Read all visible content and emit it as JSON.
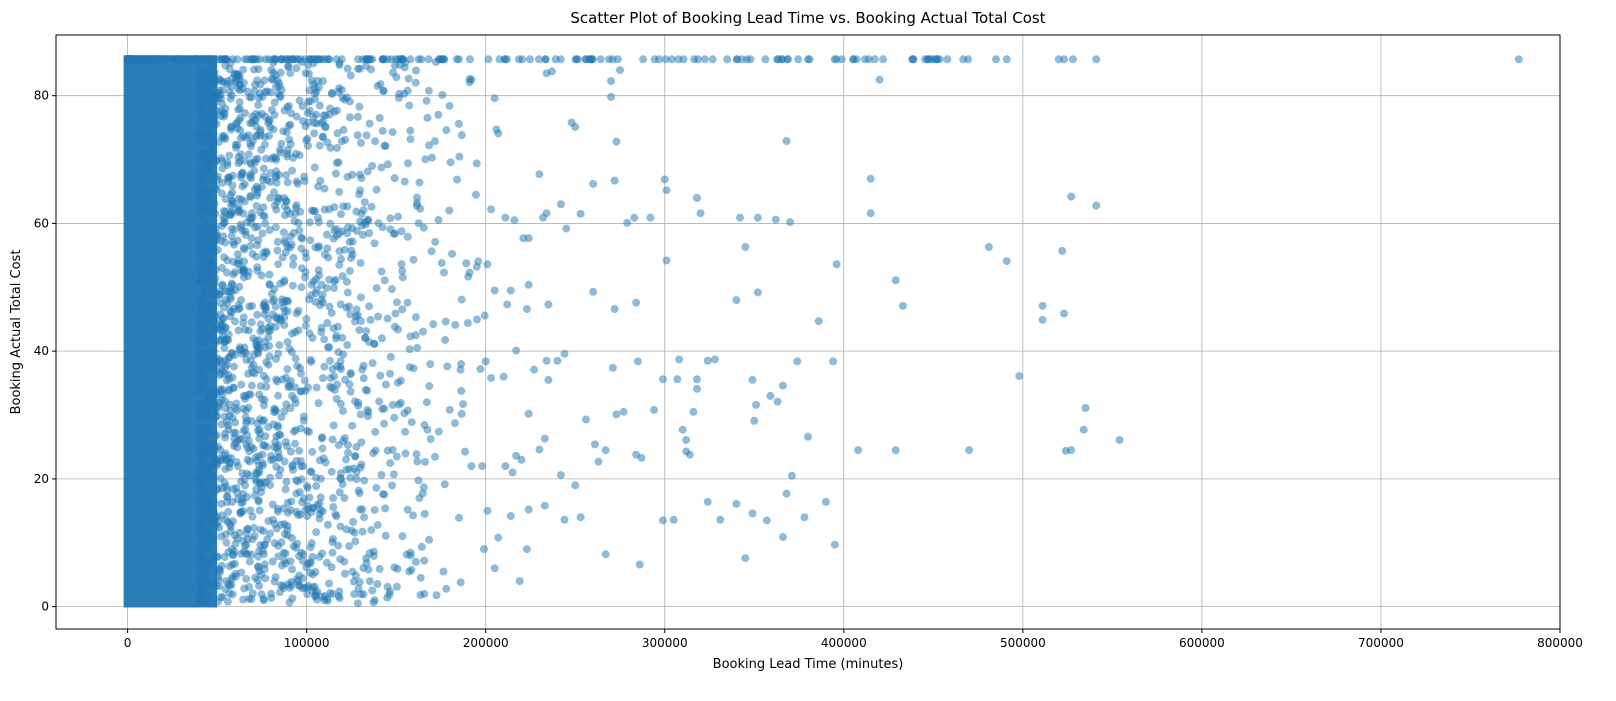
{
  "chart_data": {
    "type": "scatter",
    "title": "Scatter Plot of Booking Lead Time vs. Booking Actual Total Cost",
    "xlabel": "Booking Lead Time (minutes)",
    "ylabel": "Booking Actual Total Cost",
    "xlim": [
      -40000,
      800000
    ],
    "ylim": [
      -3.5,
      89.5
    ],
    "x_ticks": [
      0,
      100000,
      200000,
      300000,
      400000,
      500000,
      600000,
      700000,
      800000
    ],
    "x_tick_labels": [
      "0",
      "100000",
      "200000",
      "300000",
      "400000",
      "500000",
      "600000",
      "700000",
      "800000"
    ],
    "y_ticks": [
      0,
      20,
      40,
      60,
      80
    ],
    "y_tick_labels": [
      "0",
      "20",
      "40",
      "60",
      "80"
    ],
    "grid": true,
    "marker_color": "#1f77b4",
    "marker_alpha": 0.5,
    "dense_band": {
      "x_range": [
        0,
        100000
      ],
      "y_range": [
        0.5,
        85.7
      ],
      "note_values": "dense cluster of points"
    },
    "cap_value": 85.7,
    "sample_points": [
      [
        420000,
        82.5
      ],
      [
        318000,
        64
      ],
      [
        415000,
        67
      ],
      [
        527000,
        64.2
      ],
      [
        541000,
        62.8
      ],
      [
        415000,
        61.6
      ],
      [
        481000,
        56.3
      ],
      [
        522000,
        55.7
      ],
      [
        491000,
        54.1
      ],
      [
        396000,
        53.6
      ],
      [
        429000,
        51.1
      ],
      [
        433000,
        47.1
      ],
      [
        511000,
        47.1
      ],
      [
        511000,
        44.9
      ],
      [
        523000,
        45.9
      ],
      [
        386000,
        44.7
      ],
      [
        368000,
        72.9
      ],
      [
        370000,
        60.2
      ],
      [
        342000,
        60.9
      ],
      [
        352000,
        60.9
      ],
      [
        362000,
        60.6
      ],
      [
        340000,
        48
      ],
      [
        352000,
        49.2
      ],
      [
        345000,
        56.3
      ],
      [
        374000,
        38.4
      ],
      [
        394000,
        38.4
      ],
      [
        366000,
        34.6
      ],
      [
        498000,
        36.1
      ],
      [
        380000,
        26.6
      ],
      [
        408000,
        24.5
      ],
      [
        429000,
        24.5
      ],
      [
        470000,
        24.5
      ],
      [
        524000,
        24.4
      ],
      [
        527000,
        24.5
      ],
      [
        534000,
        27.7
      ],
      [
        535000,
        31.1
      ],
      [
        554000,
        26.1
      ],
      [
        371000,
        20.5
      ],
      [
        368000,
        17.7
      ],
      [
        390000,
        16.4
      ],
      [
        378000,
        14
      ],
      [
        395000,
        9.7
      ],
      [
        345000,
        7.6
      ],
      [
        366000,
        10.9
      ],
      [
        357000,
        13.5
      ],
      [
        349000,
        14.6
      ],
      [
        340000,
        16.1
      ],
      [
        331000,
        13.6
      ],
      [
        324000,
        16.4
      ],
      [
        286000,
        6.6
      ],
      [
        267000,
        8.2
      ],
      [
        305000,
        13.6
      ],
      [
        299000,
        13.5
      ],
      [
        260000,
        66.2
      ],
      [
        272000,
        66.7
      ],
      [
        230000,
        67.7
      ],
      [
        300000,
        66.9
      ],
      [
        301000,
        65.2
      ],
      [
        283000,
        60.9
      ],
      [
        292000,
        60.9
      ],
      [
        279000,
        60.1
      ],
      [
        320000,
        61.6
      ],
      [
        301000,
        54.2
      ],
      [
        284000,
        47.6
      ],
      [
        272000,
        46.6
      ],
      [
        260000,
        49.3
      ],
      [
        308000,
        38.7
      ],
      [
        328000,
        38.7
      ],
      [
        324000,
        38.5
      ],
      [
        299000,
        35.6
      ],
      [
        307000,
        35.6
      ],
      [
        318000,
        35.6
      ],
      [
        318000,
        34.1
      ],
      [
        271000,
        37.4
      ],
      [
        285000,
        38.4
      ],
      [
        349000,
        35.5
      ],
      [
        351000,
        31.6
      ],
      [
        359000,
        33
      ],
      [
        363000,
        32.1
      ],
      [
        350000,
        29.1
      ],
      [
        316000,
        30.5
      ],
      [
        294000,
        30.8
      ],
      [
        310000,
        27.7
      ],
      [
        312000,
        24.3
      ],
      [
        314000,
        23.8
      ],
      [
        312000,
        26.1
      ],
      [
        284000,
        23.8
      ],
      [
        287000,
        23.3
      ],
      [
        267000,
        24.5
      ],
      [
        261000,
        25.4
      ],
      [
        273000,
        30.1
      ],
      [
        277000,
        30.5
      ],
      [
        263000,
        22.7
      ],
      [
        256000,
        29.3
      ],
      [
        250000,
        19
      ],
      [
        273000,
        72.8
      ],
      [
        270000,
        79.8
      ],
      [
        270000,
        82.3
      ],
      [
        275000,
        84
      ],
      [
        253000,
        61.5
      ],
      [
        245000,
        59.2
      ],
      [
        242000,
        63
      ],
      [
        234000,
        61.6
      ],
      [
        232000,
        60.9
      ],
      [
        224000,
        57.7
      ],
      [
        221000,
        57.7
      ],
      [
        211000,
        60.9
      ],
      [
        216000,
        60.5
      ],
      [
        203000,
        62.2
      ],
      [
        206000,
        74.7
      ],
      [
        207000,
        74.1
      ],
      [
        205000,
        79.6
      ],
      [
        192000,
        82.5
      ],
      [
        191000,
        82.1
      ],
      [
        234000,
        83.5
      ],
      [
        237000,
        83.8
      ],
      [
        248000,
        75.8
      ],
      [
        250000,
        75.1
      ],
      [
        185000,
        75.6
      ],
      [
        178000,
        74.6
      ],
      [
        158000,
        73.2
      ],
      [
        148000,
        74.3
      ],
      [
        170000,
        70.3
      ],
      [
        163000,
        66.4
      ],
      [
        195000,
        53.2
      ],
      [
        201000,
        53.6
      ],
      [
        191000,
        52.3
      ],
      [
        205000,
        49.5
      ],
      [
        214000,
        49.5
      ],
      [
        224000,
        50.4
      ],
      [
        235000,
        47.3
      ],
      [
        223000,
        46.6
      ],
      [
        212000,
        47.3
      ],
      [
        190000,
        44.4
      ],
      [
        200000,
        38.4
      ],
      [
        197000,
        37.2
      ],
      [
        210000,
        36
      ],
      [
        203000,
        35.8
      ],
      [
        217000,
        40.1
      ],
      [
        227000,
        37.1
      ],
      [
        234000,
        38.5
      ],
      [
        240000,
        38.5
      ],
      [
        244000,
        39.6
      ],
      [
        235000,
        35.5
      ],
      [
        224000,
        30.2
      ],
      [
        233000,
        26.3
      ],
      [
        230000,
        24.6
      ],
      [
        217000,
        23.6
      ],
      [
        220000,
        23
      ],
      [
        215000,
        21
      ],
      [
        211000,
        22
      ],
      [
        198000,
        22
      ],
      [
        192000,
        22
      ],
      [
        242000,
        20.6
      ],
      [
        201000,
        15
      ],
      [
        214000,
        14.2
      ],
      [
        224000,
        15.2
      ],
      [
        233000,
        15.8
      ],
      [
        244000,
        13.6
      ],
      [
        253000,
        14
      ],
      [
        223000,
        9
      ],
      [
        207000,
        10.8
      ],
      [
        219000,
        4
      ],
      [
        205000,
        6
      ],
      [
        186000,
        3.8
      ],
      [
        178000,
        2.8
      ],
      [
        145000,
        1.4
      ],
      [
        138000,
        1
      ],
      [
        76000,
        1
      ],
      [
        92000,
        1.3
      ],
      [
        105000,
        2.1
      ],
      [
        53000,
        1.5
      ]
    ]
  }
}
